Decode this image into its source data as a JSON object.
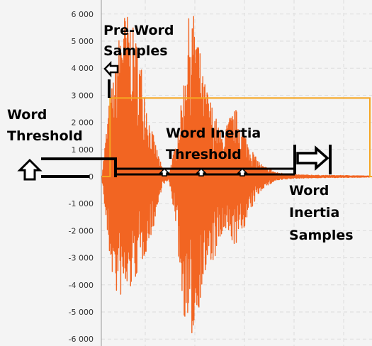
{
  "chart_data": {
    "type": "line",
    "title": "",
    "xlabel": "",
    "ylabel": "",
    "ylim": [
      -6200,
      6200
    ],
    "y_ticks": [
      6000,
      5000,
      4000,
      3000,
      2000,
      1000,
      0,
      -1000,
      -2000,
      -3000,
      -4000,
      -5000,
      -6000
    ],
    "y_tick_labels": [
      "6 000",
      "5 000",
      "4 000",
      "3 000",
      "2 000",
      "1 000",
      "0",
      "-1 000",
      "-2 000",
      "-3 000",
      "-4 000",
      "-5 000",
      "-6 000"
    ],
    "grid": true,
    "series": [
      {
        "color": "#f26522",
        "x": [
          0,
          0.025,
          0.05,
          0.075,
          0.1,
          0.125,
          0.15,
          0.175,
          0.2,
          0.225,
          0.25,
          0.275,
          0.3,
          0.325,
          0.35,
          0.375,
          0.4,
          0.425,
          0.45,
          0.475,
          0.5,
          0.525,
          0.55,
          0.575,
          0.6,
          0.625,
          0.65,
          0.675,
          0.7,
          0.75,
          0.8,
          0.85,
          0.9,
          0.95,
          1.0
        ],
        "max": [
          100,
          2600,
          4200,
          6100,
          6000,
          5200,
          4000,
          2200,
          1200,
          300,
          150,
          1200,
          3000,
          6000,
          6000,
          3800,
          3000,
          2200,
          1500,
          2200,
          2500,
          1800,
          1200,
          700,
          400,
          300,
          150,
          120,
          80,
          60,
          50,
          40,
          40,
          30,
          20
        ],
        "min": [
          -100,
          -2800,
          -4400,
          -4500,
          -4400,
          -3800,
          -3200,
          -2500,
          -1600,
          -300,
          -150,
          -1700,
          -4800,
          -6200,
          -5600,
          -4000,
          -3400,
          -3000,
          -2200,
          -2300,
          -2600,
          -2000,
          -1500,
          -800,
          -450,
          -300,
          -150,
          -120,
          -80,
          -60,
          -50,
          -40,
          -40,
          -30,
          -20
        ]
      },
      {
        "color": "#f5a623",
        "step": true,
        "x": [
          0,
          0.03,
          0.03,
          1.0,
          1.0
        ],
        "y": [
          0,
          0,
          2900,
          2900,
          0
        ]
      }
    ]
  },
  "annotations": {
    "pre_word": [
      "Pre-Word",
      "Samples"
    ],
    "word_threshold": [
      "Word",
      "Threshold"
    ],
    "word_inertia_threshold": [
      "Word Inertia",
      "Threshold"
    ],
    "word_inertia_samples": [
      "Word",
      "Inertia",
      "Samples"
    ]
  },
  "colors": {
    "signal": "#f26522",
    "gate": "#f5a623",
    "grid": "#dddddd",
    "markers": "#000000"
  }
}
